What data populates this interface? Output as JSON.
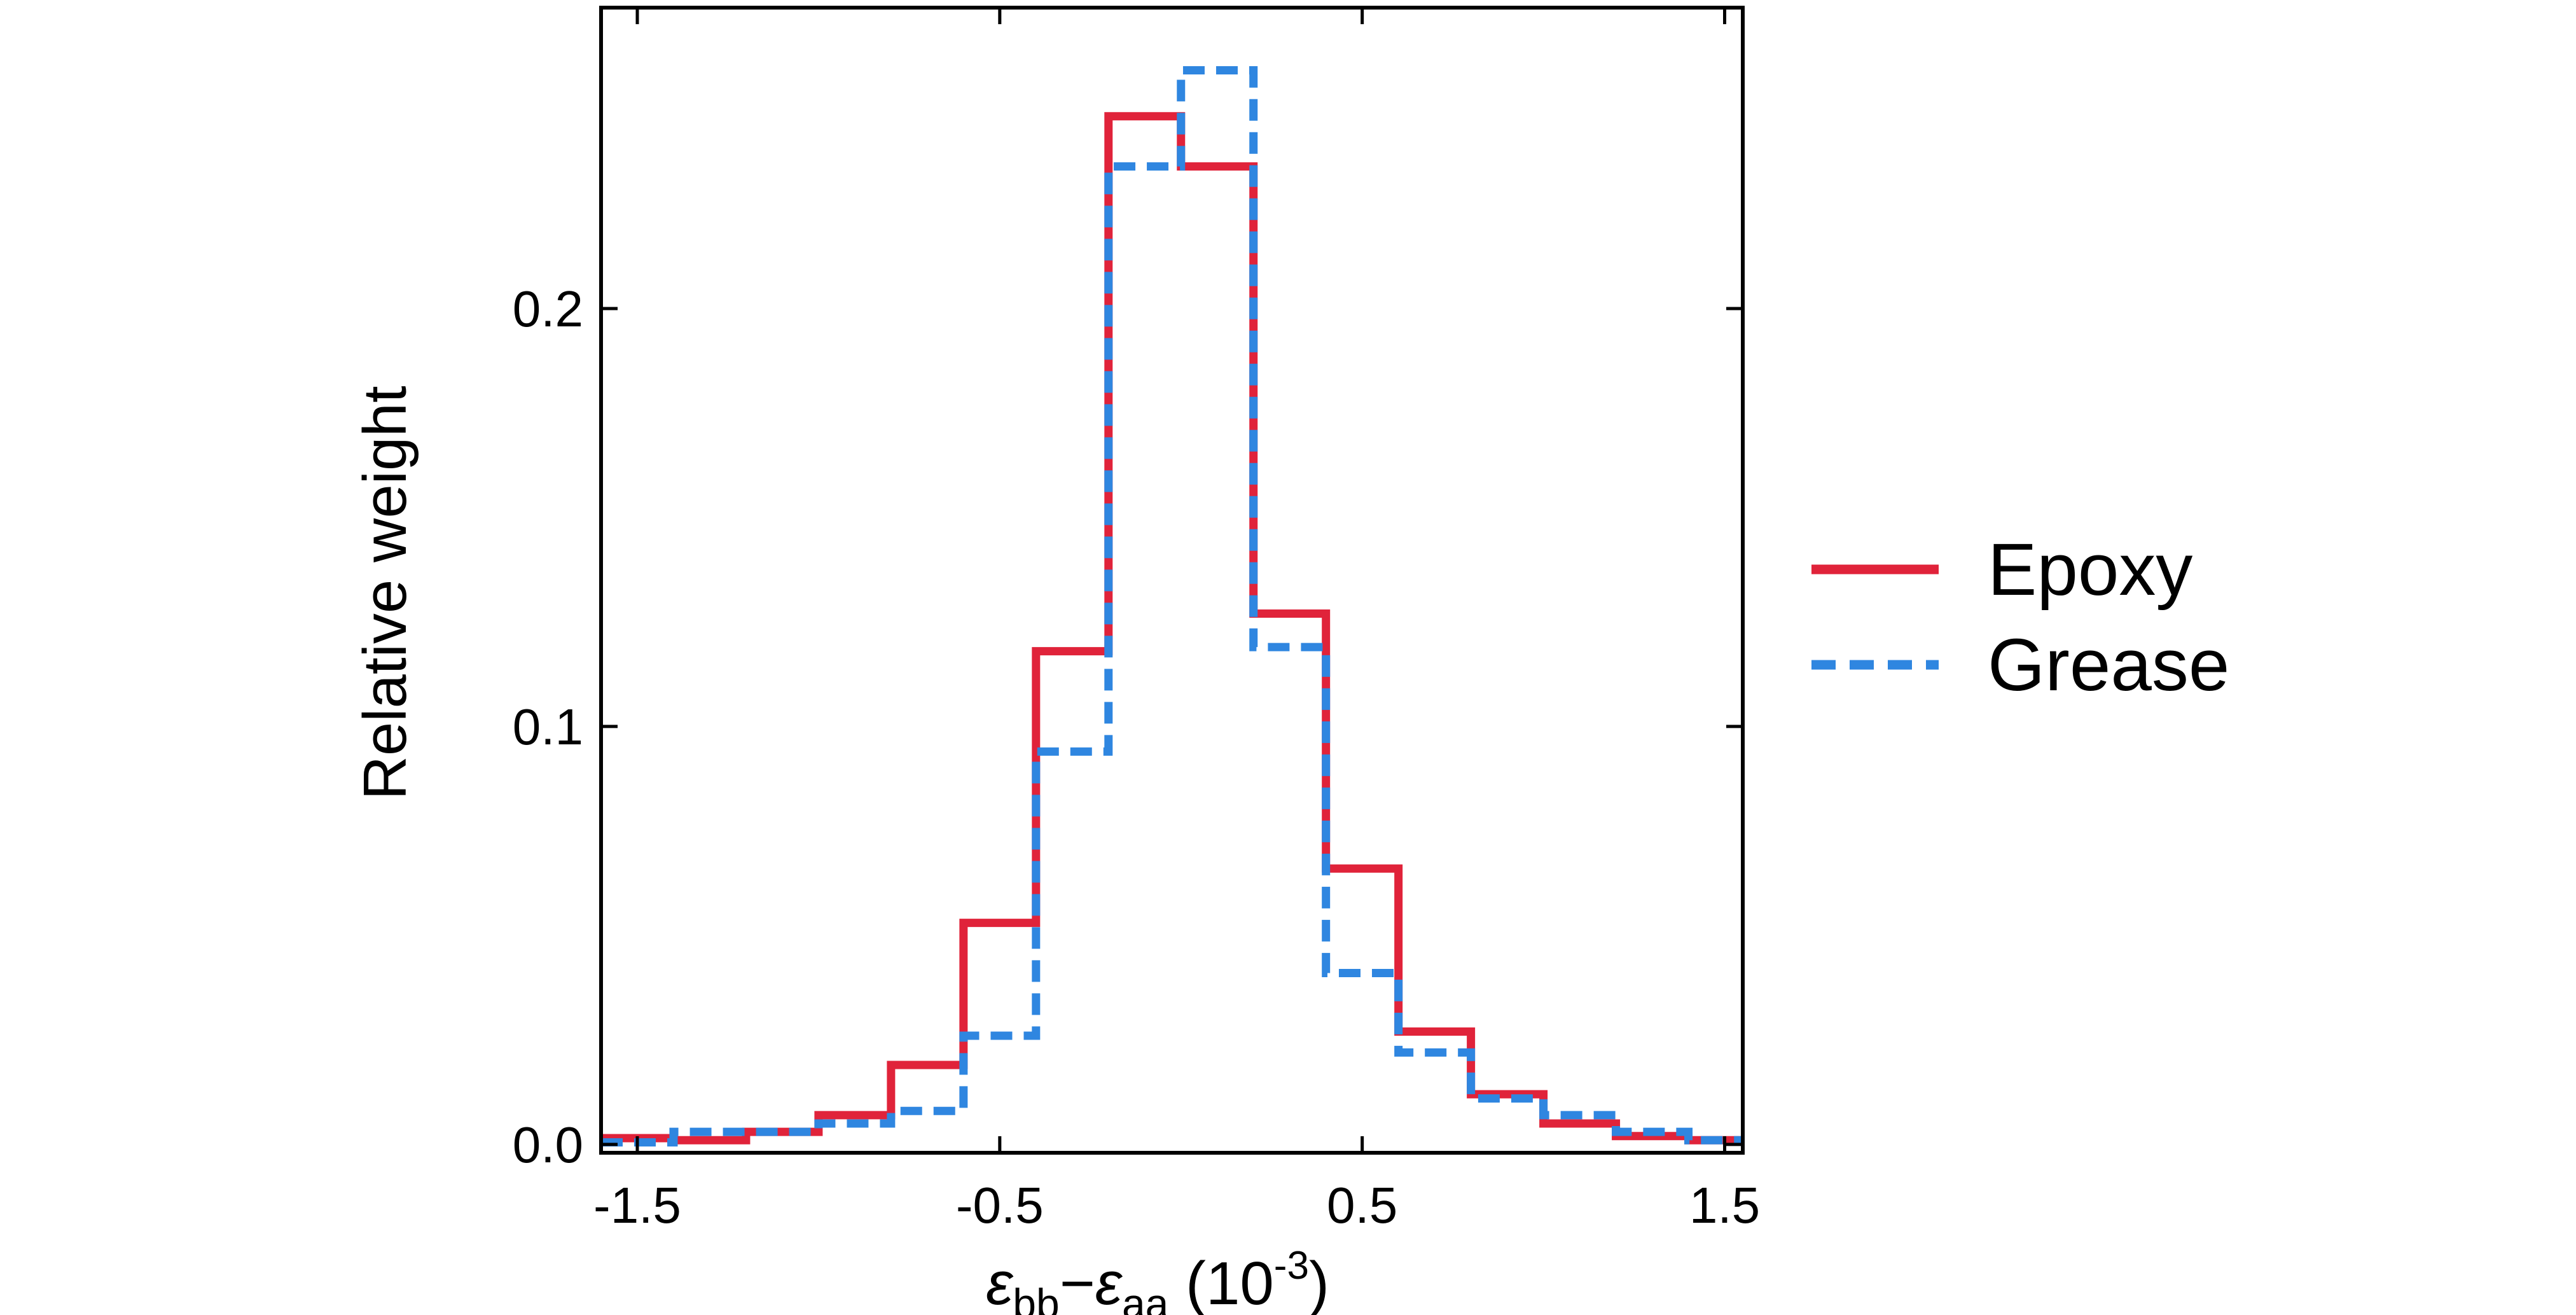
{
  "chart_data": {
    "type": "histogram-step",
    "title": "",
    "xlabel": {
      "eps": "ε",
      "sub1": "bb",
      "dash": "−",
      "sub2": "aa",
      "unit_open": " (10",
      "unit_exp": "-3",
      "unit_close": ")"
    },
    "ylabel": "Relative weight",
    "xlim": [
      -1.6,
      1.55
    ],
    "ylim": [
      -0.002,
      0.272
    ],
    "x_ticks": [
      -1.5,
      -0.5,
      0.5,
      1.5
    ],
    "x_tick_labels": [
      "-1.5",
      "-0.5",
      "0.5",
      "1.5"
    ],
    "y_ticks": [
      0.0,
      0.1,
      0.2
    ],
    "y_tick_labels": [
      "0.0",
      "0.1",
      "0.2"
    ],
    "bin_edges": [
      -1.6,
      -1.4,
      -1.2,
      -1.0,
      -0.8,
      -0.6,
      -0.4,
      -0.2,
      0.0,
      0.2,
      0.4,
      0.6,
      0.8,
      1.0,
      1.2,
      1.4,
      1.55
    ],
    "series": [
      {
        "name": "Epoxy",
        "color": "#e0233a",
        "style": "solid",
        "values": [
          0.0015,
          0.001,
          0.003,
          0.007,
          0.019,
          0.053,
          0.118,
          0.246,
          0.234,
          0.127,
          0.066,
          0.027,
          0.012,
          0.005,
          0.002,
          0.001
        ]
      },
      {
        "name": "Grease",
        "color": "#2f86e0",
        "style": "dashed",
        "values": [
          0.0005,
          0.003,
          0.003,
          0.005,
          0.008,
          0.026,
          0.094,
          0.234,
          0.257,
          0.119,
          0.041,
          0.022,
          0.011,
          0.007,
          0.003,
          0.001
        ]
      }
    ],
    "legend_position": "right"
  }
}
